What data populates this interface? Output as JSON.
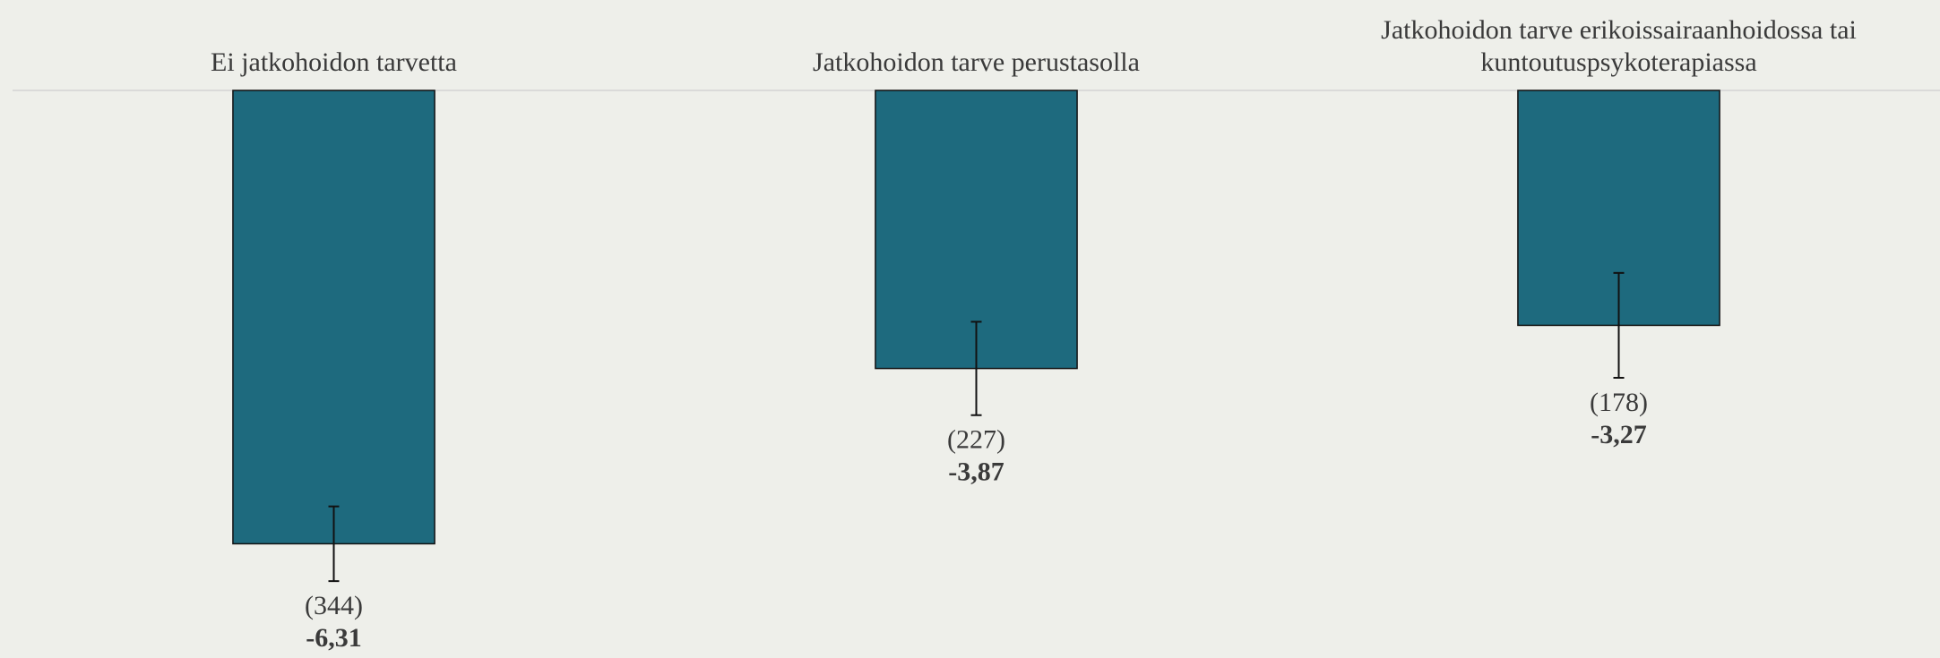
{
  "chart_data": {
    "type": "bar",
    "categories": [
      "Ei jatkohoidon tarvetta",
      "Jatkohoidon tarve perustasolla",
      "Jatkohoidon tarve erikoissairaanhoidossa tai kuntoutuspsykoterapiassa"
    ],
    "values": [
      -6.31,
      -3.87,
      -3.27
    ],
    "value_labels": [
      "-6,31",
      "-3,87",
      "-3,27"
    ],
    "errors": [
      0.52,
      0.65,
      0.73
    ],
    "count_labels": [
      "(344)",
      "(227)",
      "(178)"
    ],
    "color": "#1e6a7e",
    "ylim": [
      -7.9,
      0
    ]
  }
}
